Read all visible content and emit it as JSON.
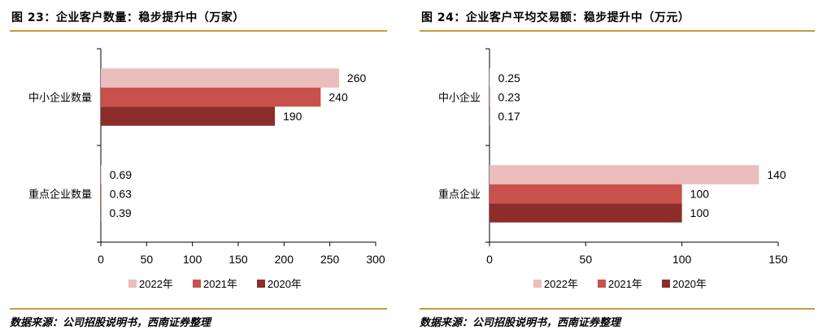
{
  "colors": {
    "series_2022": "#ebbcbc",
    "series_2021": "#c8524b",
    "series_2020": "#8c2d29",
    "rule": "#c99a3b",
    "axis": "#000000"
  },
  "chart_data": [
    {
      "type": "bar",
      "orientation": "horizontal",
      "title": "图 23：企业客户数量：稳步提升中（万家）",
      "categories": [
        "中小企业数量",
        "重点企业数量"
      ],
      "series": [
        {
          "name": "2022年",
          "values": [
            260,
            0.69
          ]
        },
        {
          "name": "2021年",
          "values": [
            240,
            0.63
          ]
        },
        {
          "name": "2020年",
          "values": [
            190,
            0.39
          ]
        }
      ],
      "data_labels": [
        [
          "260",
          "240",
          "190"
        ],
        [
          "0.69",
          "0.63",
          "0.39"
        ]
      ],
      "xlim": [
        0,
        300
      ],
      "xticks": [
        "0",
        "50",
        "100",
        "150",
        "200",
        "250",
        "300"
      ],
      "xtick_values": [
        0,
        50,
        100,
        150,
        200,
        250,
        300
      ],
      "legend": "bottom-center",
      "grid": false,
      "source": "数据来源：公司招股说明书，西南证券整理"
    },
    {
      "type": "bar",
      "orientation": "horizontal",
      "title": "图 24：企业客户平均交易额：稳步提升中（万元）",
      "categories": [
        "中小企业",
        "重点企业"
      ],
      "series": [
        {
          "name": "2022年",
          "values": [
            0.25,
            140
          ]
        },
        {
          "name": "2021年",
          "values": [
            0.23,
            100
          ]
        },
        {
          "name": "2020年",
          "values": [
            0.17,
            100
          ]
        }
      ],
      "data_labels": [
        [
          "0.25",
          "0.23",
          "0.17"
        ],
        [
          "140",
          "100",
          "100"
        ]
      ],
      "xlim": [
        0,
        150
      ],
      "xticks": [
        "0",
        "50",
        "100",
        "150"
      ],
      "xtick_values": [
        0,
        50,
        100,
        150
      ],
      "legend": "bottom-center",
      "grid": false,
      "source": "数据来源：公司招股说明书，西南证券整理"
    }
  ]
}
